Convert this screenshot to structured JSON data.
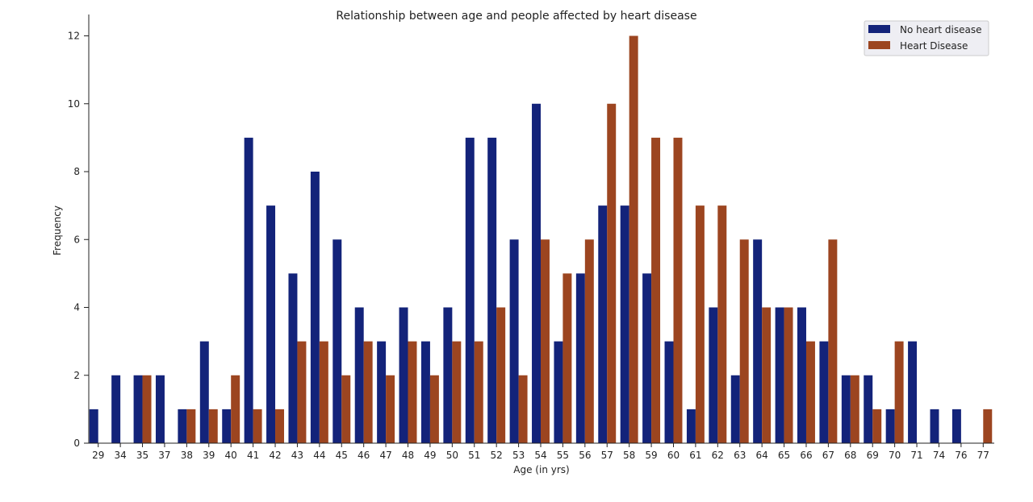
{
  "chart_data": {
    "type": "bar",
    "title": "Relationship between age and people affected by heart disease",
    "xlabel": "Age (in yrs)",
    "ylabel": "Frequency",
    "ylim": [
      0,
      12.6
    ],
    "yticks": [
      0,
      2,
      4,
      6,
      8,
      10,
      12
    ],
    "grid": false,
    "legend_position": "top-right",
    "categories": [
      "29",
      "34",
      "35",
      "37",
      "38",
      "39",
      "40",
      "41",
      "42",
      "43",
      "44",
      "45",
      "46",
      "47",
      "48",
      "49",
      "50",
      "51",
      "52",
      "53",
      "54",
      "55",
      "56",
      "57",
      "58",
      "59",
      "60",
      "61",
      "62",
      "63",
      "64",
      "65",
      "66",
      "67",
      "68",
      "69",
      "70",
      "71",
      "74",
      "76",
      "77"
    ],
    "series": [
      {
        "name": "No heart disease",
        "color": "#13237a",
        "values": [
          1,
          2,
          2,
          2,
          1,
          3,
          1,
          9,
          7,
          5,
          8,
          6,
          4,
          3,
          4,
          3,
          4,
          9,
          9,
          6,
          10,
          3,
          5,
          7,
          7,
          5,
          3,
          1,
          4,
          2,
          6,
          4,
          4,
          3,
          2,
          2,
          1,
          3,
          1,
          1,
          0
        ]
      },
      {
        "name": "Heart Disease",
        "color": "#9c4520",
        "values": [
          0,
          0,
          2,
          0,
          1,
          1,
          2,
          1,
          1,
          3,
          3,
          2,
          3,
          2,
          3,
          2,
          3,
          3,
          4,
          2,
          6,
          5,
          6,
          10,
          12,
          9,
          9,
          7,
          7,
          6,
          4,
          4,
          3,
          6,
          2,
          1,
          3,
          0,
          0,
          0,
          1
        ]
      }
    ]
  }
}
